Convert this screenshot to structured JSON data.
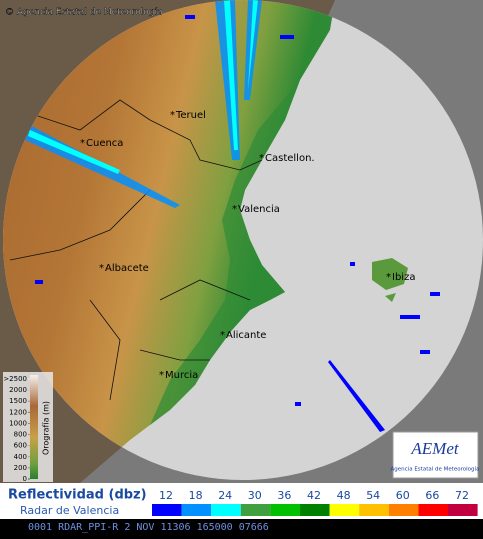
{
  "header": {
    "credit": "© Agencia Estatal de Meteorología"
  },
  "places": [
    {
      "label": "Teruel"
    },
    {
      "label": "Cuenca"
    },
    {
      "label": "Castellon."
    },
    {
      "label": "Valencia"
    },
    {
      "label": "Albacete"
    },
    {
      "label": "Ibiza"
    },
    {
      "label": "Alicante"
    },
    {
      "label": "Murcia"
    }
  ],
  "orography": {
    "title": "Orografía (m)",
    "levels": [
      {
        "label": ">2500",
        "color": "#f4f0ec"
      },
      {
        "label": "2000",
        "color": "#d8c8b8"
      },
      {
        "label": "1500",
        "color": "#b89070"
      },
      {
        "label": "1200",
        "color": "#a86838"
      },
      {
        "label": "1000",
        "color": "#b87a3a"
      },
      {
        "label": "800",
        "color": "#c08a40"
      },
      {
        "label": "600",
        "color": "#c8a048"
      },
      {
        "label": "400",
        "color": "#b0b048"
      },
      {
        "label": "200",
        "color": "#70a040"
      },
      {
        "label": "0",
        "color": "#288030"
      }
    ]
  },
  "logo": {
    "name": "AEMet",
    "subtitle": "Agencia Estatal de Meteorología"
  },
  "legend": {
    "title": "Reflectividad (dbz)",
    "subtitle": "Radar de Valencia",
    "levels": [
      {
        "label": "12",
        "color": "#0000ff"
      },
      {
        "label": "18",
        "color": "#0090ff"
      },
      {
        "label": "24",
        "color": "#00ffff"
      },
      {
        "label": "30",
        "color": "#40a040"
      },
      {
        "label": "36",
        "color": "#00c000"
      },
      {
        "label": "42",
        "color": "#008000"
      },
      {
        "label": "48",
        "color": "#ffff00"
      },
      {
        "label": "54",
        "color": "#ffc000"
      },
      {
        "label": "60",
        "color": "#ff8000"
      },
      {
        "label": "66",
        "color": "#ff0000"
      },
      {
        "label": "72",
        "color": "#c00040"
      }
    ]
  },
  "status": "0001 RDAR_PPI-R   2 NOV 11306 165000 07666"
}
